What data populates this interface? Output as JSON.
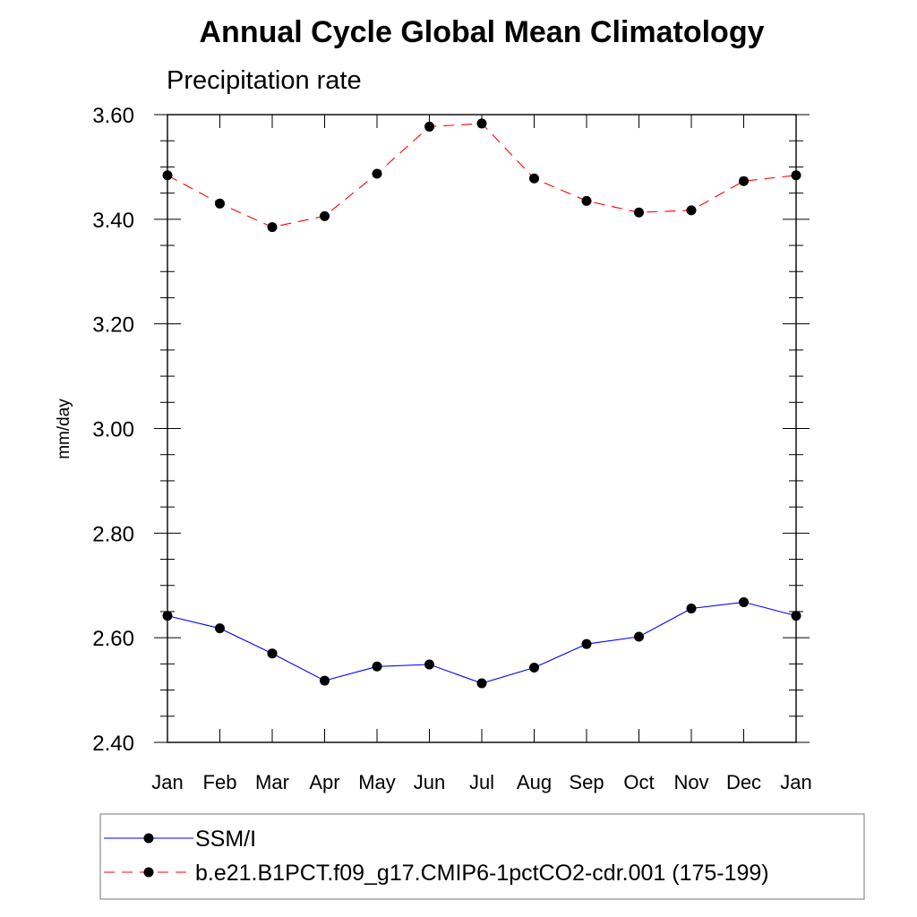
{
  "chart_data": {
    "type": "line",
    "title": "Annual Cycle Global Mean Climatology",
    "subtitle": "Precipitation rate",
    "ylabel": "mm/day",
    "xlabel": "",
    "categories": [
      "Jan",
      "Feb",
      "Mar",
      "Apr",
      "May",
      "Jun",
      "Jul",
      "Aug",
      "Sep",
      "Oct",
      "Nov",
      "Dec",
      "Jan"
    ],
    "ylim": [
      2.4,
      3.6
    ],
    "yticks": [
      "2.40",
      "2.60",
      "2.80",
      "3.00",
      "3.20",
      "3.40",
      "3.60"
    ],
    "grid": false,
    "legend_position": "bottom",
    "series": [
      {
        "name": "SSM/I",
        "color": "#0000ff",
        "line_style": "solid",
        "values": [
          2.642,
          2.618,
          2.57,
          2.518,
          2.545,
          2.549,
          2.513,
          2.543,
          2.588,
          2.602,
          2.656,
          2.668,
          2.642
        ]
      },
      {
        "name": "b.e21.B1PCT.f09_g17.CMIP6-1pctCO2-cdr.001 (175-199)",
        "color": "#ff0000",
        "line_style": "dashed",
        "values": [
          3.484,
          3.43,
          3.385,
          3.406,
          3.487,
          3.577,
          3.583,
          3.478,
          3.435,
          3.413,
          3.417,
          3.473,
          3.484
        ]
      }
    ]
  }
}
